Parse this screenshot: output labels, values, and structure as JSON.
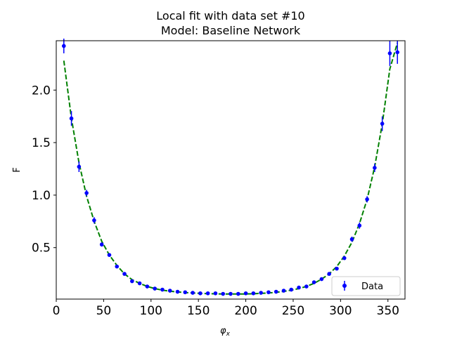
{
  "chart_data": {
    "type": "scatter",
    "title": "Local fit with data set #10",
    "subtitle": "Model: Baseline Network",
    "xlabel": "φ",
    "xlabel_sub": "x",
    "ylabel": "F",
    "xlim": [
      0,
      368
    ],
    "ylim": [
      0.01,
      2.47
    ],
    "xticks": [
      0,
      50,
      100,
      150,
      200,
      250,
      300,
      350
    ],
    "yticks": [
      0.5,
      1.0,
      1.5,
      2.0
    ],
    "xtick_labels": [
      "0",
      "50",
      "100",
      "150",
      "200",
      "250",
      "300",
      "350"
    ],
    "ytick_labels": [
      "0.5",
      "1.0",
      "1.5",
      "2.0"
    ],
    "grid": false,
    "legend_position": "bottom-right",
    "series": [
      {
        "name": "Data",
        "kind": "errorbar",
        "color": "#0000ff",
        "x": [
          8,
          16,
          24,
          32,
          40,
          48,
          56,
          64,
          72,
          80,
          88,
          96,
          104,
          112,
          120,
          128,
          136,
          144,
          152,
          160,
          168,
          176,
          184,
          192,
          200,
          208,
          216,
          224,
          232,
          240,
          248,
          256,
          264,
          272,
          280,
          288,
          296,
          304,
          312,
          320,
          328,
          336,
          344,
          352,
          360
        ],
        "y": [
          2.42,
          1.73,
          1.27,
          1.02,
          0.76,
          0.53,
          0.43,
          0.32,
          0.25,
          0.18,
          0.16,
          0.13,
          0.11,
          0.1,
          0.09,
          0.08,
          0.075,
          0.07,
          0.065,
          0.065,
          0.065,
          0.06,
          0.06,
          0.06,
          0.065,
          0.065,
          0.07,
          0.075,
          0.08,
          0.09,
          0.1,
          0.12,
          0.13,
          0.17,
          0.2,
          0.25,
          0.3,
          0.4,
          0.58,
          0.71,
          0.96,
          1.26,
          1.68,
          2.35,
          2.36
        ],
        "yerr": [
          0.07,
          0.07,
          0.05,
          0.03,
          0.03,
          0.02,
          0.015,
          0.01,
          0.01,
          0.01,
          0.01,
          0.005,
          0.005,
          0.005,
          0.005,
          0.005,
          0.005,
          0.005,
          0.005,
          0.005,
          0.005,
          0.005,
          0.005,
          0.005,
          0.005,
          0.005,
          0.005,
          0.005,
          0.005,
          0.005,
          0.005,
          0.005,
          0.005,
          0.005,
          0.01,
          0.01,
          0.01,
          0.015,
          0.025,
          0.03,
          0.03,
          0.04,
          0.07,
          0.12,
          0.11
        ]
      },
      {
        "name": "",
        "kind": "fit-line",
        "color": "#008000",
        "dashed": true,
        "x": [
          8,
          16,
          24,
          32,
          40,
          48,
          56,
          64,
          72,
          80,
          88,
          96,
          104,
          112,
          120,
          128,
          136,
          144,
          152,
          160,
          168,
          176,
          184,
          192,
          200,
          208,
          216,
          224,
          232,
          240,
          248,
          256,
          264,
          272,
          280,
          288,
          296,
          304,
          312,
          320,
          328,
          336,
          344,
          352,
          360
        ],
        "y": [
          2.28,
          1.73,
          1.31,
          0.99,
          0.75,
          0.56,
          0.43,
          0.33,
          0.25,
          0.195,
          0.16,
          0.13,
          0.11,
          0.095,
          0.085,
          0.078,
          0.072,
          0.068,
          0.064,
          0.062,
          0.06,
          0.059,
          0.058,
          0.058,
          0.059,
          0.061,
          0.064,
          0.068,
          0.074,
          0.083,
          0.095,
          0.11,
          0.13,
          0.16,
          0.2,
          0.25,
          0.32,
          0.42,
          0.55,
          0.73,
          0.96,
          1.27,
          1.68,
          2.2,
          2.45
        ]
      }
    ]
  }
}
